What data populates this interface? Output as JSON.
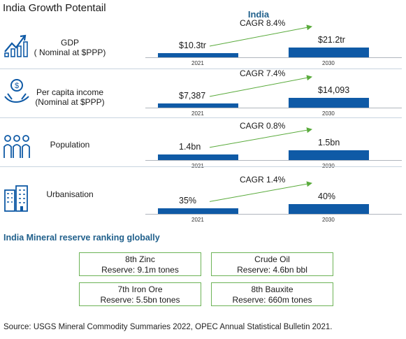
{
  "page_title": "India Growth Potentail",
  "chart_data": {
    "type": "bar",
    "title": "India",
    "categories": [
      "2021",
      "2030"
    ],
    "panels": [
      {
        "label_lines": [
          "GDP",
          "( Nominal at $PPP)"
        ],
        "icon": "gdp-growth-chart-icon",
        "values": [
          10.3,
          21.2
        ],
        "value_labels": [
          "$10.3tr",
          "$21.2tr"
        ],
        "cagr": "CAGR 8.4%"
      },
      {
        "label_lines": [
          "Per capita income",
          "(Nominal at $PPP)"
        ],
        "icon": "hand-coin-income-icon",
        "values": [
          7387,
          14093
        ],
        "value_labels": [
          "$7,387",
          "$14,093"
        ],
        "cagr": "CAGR 7.4%"
      },
      {
        "label_lines": [
          "Population",
          ""
        ],
        "icon": "people-group-icon",
        "values": [
          1.4,
          1.5
        ],
        "value_labels": [
          "1.4bn",
          "1.5bn"
        ],
        "cagr": "CAGR 0.8%"
      },
      {
        "label_lines": [
          "Urbanisation",
          ""
        ],
        "icon": "city-buildings-icon",
        "values": [
          35,
          40
        ],
        "value_labels": [
          "35%",
          "40%"
        ],
        "cagr": "CAGR 1.4%"
      }
    ]
  },
  "minerals": {
    "title": "India Mineral reserve ranking globally",
    "items": [
      {
        "name": "8th Zinc",
        "reserve": "Reserve: 9.1m tones"
      },
      {
        "name": "Crude Oil",
        "reserve": "Reserve: 4.6bn bbl"
      },
      {
        "name": "7th Iron Ore",
        "reserve": "Reserve: 5.5bn tones"
      },
      {
        "name": "8th Bauxite",
        "reserve": "Reserve: 660m tones"
      }
    ]
  },
  "source": "Source: USGS Mineral Commodity Summaries 2022, OPEC Annual Statistical Bulletin 2021.",
  "colors": {
    "bar": "#0f5aa6",
    "accent": "#1f5f8b",
    "cagr_arrow": "#5aab3c",
    "box_border": "#6cb356"
  }
}
